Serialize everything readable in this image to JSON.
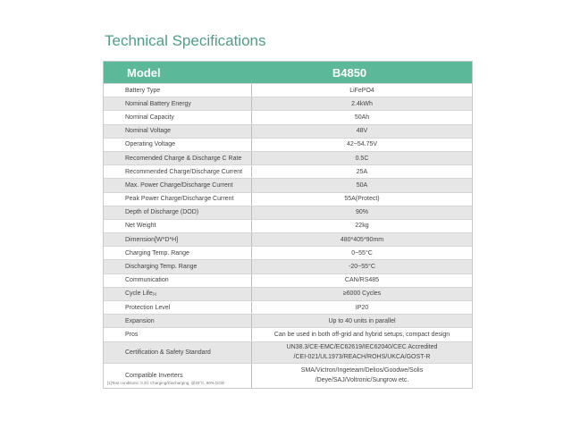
{
  "title": "Technical Specifications",
  "header": {
    "label": "Model",
    "value": "B4850"
  },
  "rows": [
    {
      "label": "Battery Type",
      "value": "LiFePO4"
    },
    {
      "label": "Nominal Battery Energy",
      "value": "2.4kWh"
    },
    {
      "label": "Nominal Capacity",
      "value": "50Ah"
    },
    {
      "label": "Nominal Voltage",
      "value": "48V"
    },
    {
      "label": "Operating Voltage",
      "value": "42~54.75V"
    },
    {
      "label": "Recomended Charge & Discharge C Rate",
      "value": "0.5C"
    },
    {
      "label": "Recommended Charge/Discharge Current",
      "value": "25A"
    },
    {
      "label": "Max. Power Charge/Discharge Current",
      "value": "50A"
    },
    {
      "label": "Peak Power Charge/Discharge Current",
      "value": "55A(Protect)"
    },
    {
      "label": "Depth of Discharge (DOD)",
      "value": "90%"
    },
    {
      "label": "Net Weight",
      "value": "22kg"
    },
    {
      "label": "Dimension[W*D*H]",
      "value": "480*405*90mm"
    },
    {
      "label": "Charging Temp. Range",
      "value": "0~55°C"
    },
    {
      "label": "Discharging Temp. Range",
      "value": "-20~55°C"
    },
    {
      "label": "Communication",
      "value": "CAN/RS485"
    },
    {
      "label": "Cycle Life",
      "sup": "[1]",
      "value": "≥6000 Cycles"
    },
    {
      "label": "Protection Level",
      "value": "IP20"
    },
    {
      "label": "Expansion",
      "value": "Up to 40 units in parallel"
    },
    {
      "label": "Pros",
      "value": "Can be used in both off-grid and hybrid setups, compact design"
    }
  ],
  "certification": {
    "label": "Certification & Safety Standard",
    "line1": "UN38.3/CE-EMC/EC62619/IEC62040/CEC Accredited",
    "line2": "/CEI-021/UL1973/REACH/ROHS/UKCA/GOST-R"
  },
  "inverters": {
    "label": "Compatible Inverters",
    "line1": "SMA/Victron/Ingeteam/Delios/Goodwe/Solis",
    "line2": "/Deye/SAJ/Voltronic/Sungrow etc."
  },
  "footnote": "[1]Test conditions: 0.2C Charging/Discharging, @25°C, 90% DOD"
}
